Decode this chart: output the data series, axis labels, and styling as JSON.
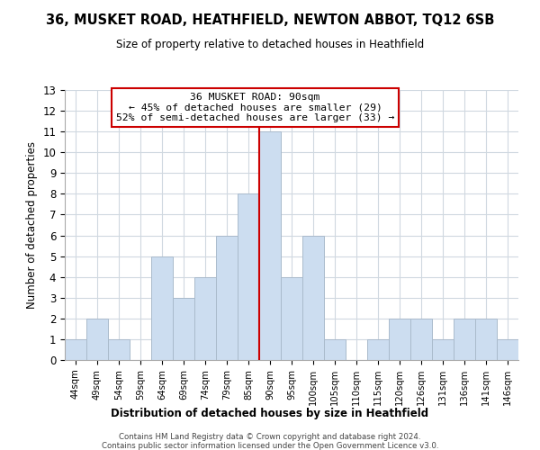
{
  "title": "36, MUSKET ROAD, HEATHFIELD, NEWTON ABBOT, TQ12 6SB",
  "subtitle": "Size of property relative to detached houses in Heathfield",
  "xlabel": "Distribution of detached houses by size in Heathfield",
  "ylabel": "Number of detached properties",
  "bins": [
    "44sqm",
    "49sqm",
    "54sqm",
    "59sqm",
    "64sqm",
    "69sqm",
    "74sqm",
    "79sqm",
    "85sqm",
    "90sqm",
    "95sqm",
    "100sqm",
    "105sqm",
    "110sqm",
    "115sqm",
    "120sqm",
    "126sqm",
    "131sqm",
    "136sqm",
    "141sqm",
    "146sqm"
  ],
  "counts": [
    1,
    2,
    1,
    0,
    5,
    3,
    4,
    6,
    8,
    11,
    4,
    6,
    1,
    0,
    1,
    2,
    2,
    1,
    2,
    2,
    1
  ],
  "bar_color": "#ccddf0",
  "bar_edge_color": "#aabbcc",
  "highlight_bin_index": 9,
  "highlight_line_color": "#cc0000",
  "ylim": [
    0,
    13
  ],
  "yticks": [
    0,
    1,
    2,
    3,
    4,
    5,
    6,
    7,
    8,
    9,
    10,
    11,
    12,
    13
  ],
  "annotation_title": "36 MUSKET ROAD: 90sqm",
  "annotation_line1": "← 45% of detached houses are smaller (29)",
  "annotation_line2": "52% of semi-detached houses are larger (33) →",
  "annotation_box_color": "#ffffff",
  "annotation_box_edge": "#cc0000",
  "footer1": "Contains HM Land Registry data © Crown copyright and database right 2024.",
  "footer2": "Contains public sector information licensed under the Open Government Licence v3.0.",
  "background_color": "#ffffff",
  "grid_color": "#d0d8e0"
}
